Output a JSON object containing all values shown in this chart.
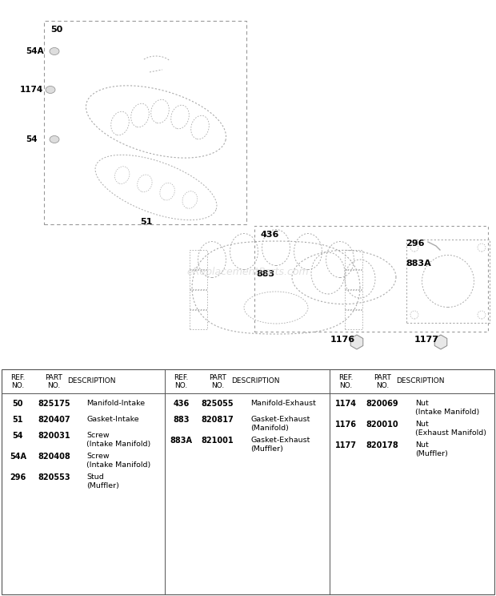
{
  "bg_color": "#ffffff",
  "watermark": "eReplacementParts.com",
  "table": {
    "col1_rows": [
      [
        "50",
        "825175",
        "Manifold-Intake"
      ],
      [
        "51",
        "820407",
        "Gasket-Intake"
      ],
      [
        "54",
        "820031",
        "Screw\n(Intake Manifold)"
      ],
      [
        "54A",
        "820408",
        "Screw\n(Intake Manifold)"
      ],
      [
        "296",
        "820553",
        "Stud\n(Muffler)"
      ]
    ],
    "col2_rows": [
      [
        "436",
        "825055",
        "Manifold-Exhaust"
      ],
      [
        "883",
        "820817",
        "Gasket-Exhaust\n(Manifold)"
      ],
      [
        "883A",
        "821001",
        "Gasket-Exhaust\n(Muffler)"
      ]
    ],
    "col3_rows": [
      [
        "1174",
        "820069",
        "Nut\n(Intake Manifold)"
      ],
      [
        "1176",
        "820010",
        "Nut\n(Exhaust Manifold)"
      ],
      [
        "1177",
        "820178",
        "Nut\n(Muffler)"
      ]
    ]
  }
}
